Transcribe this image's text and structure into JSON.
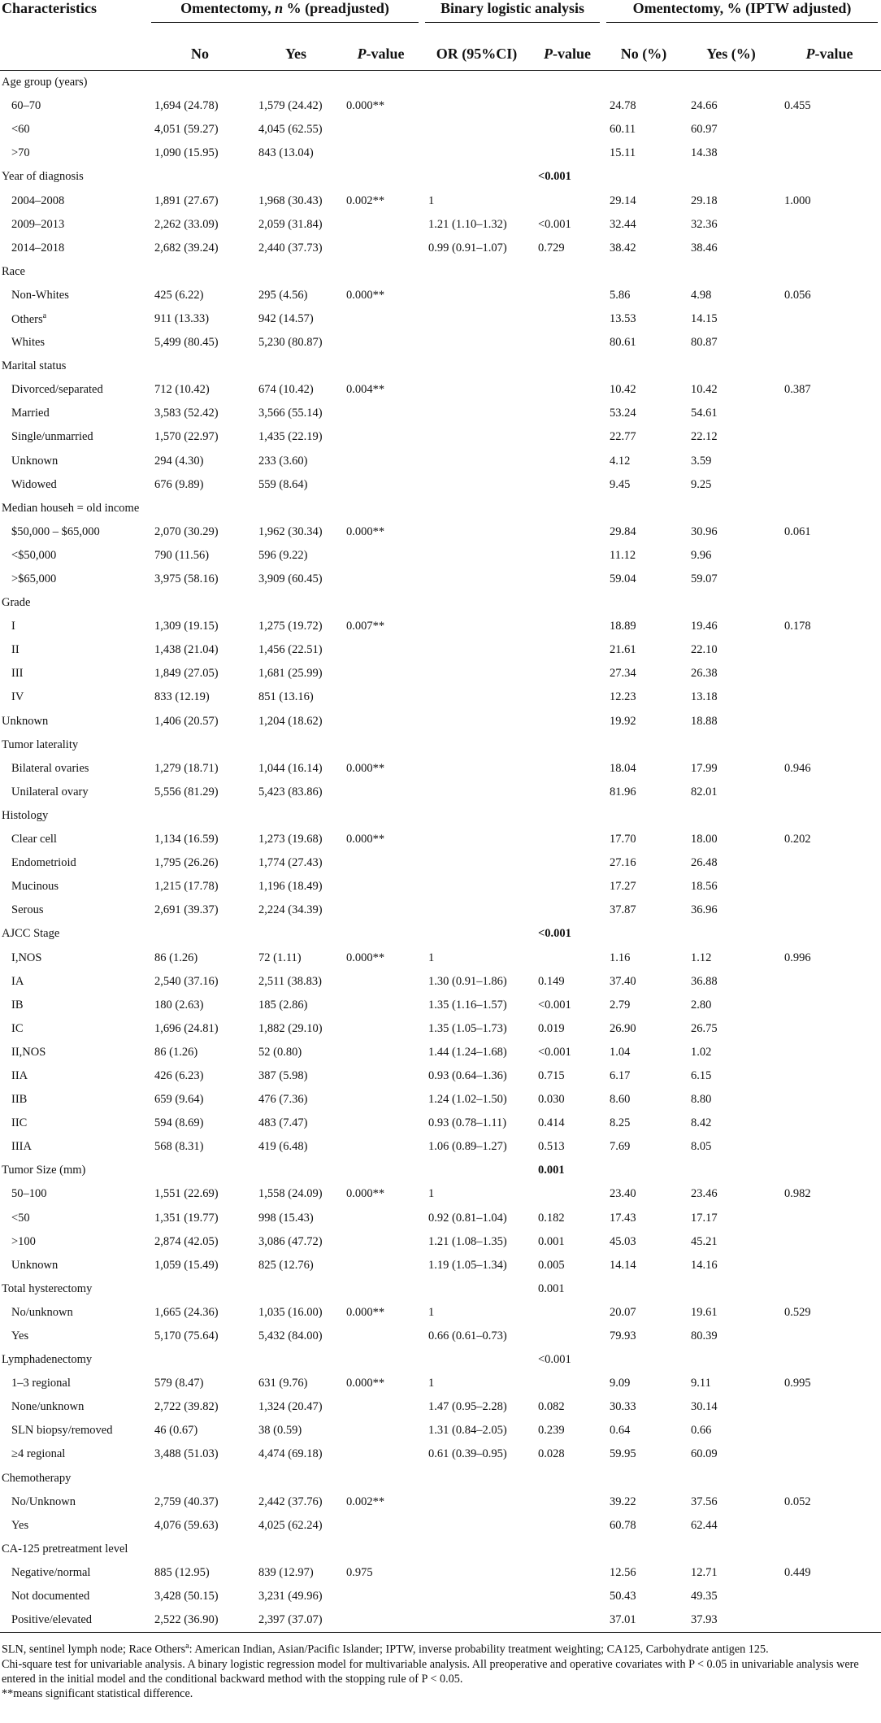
{
  "table": {
    "header_groups": {
      "characteristics": "Characteristics",
      "omentectomy": {
        "before": "Omentectomy, ",
        "italic": "n",
        "after": " % (preadjusted)"
      },
      "binary": "Binary logistic analysis",
      "iptw": "Omentectomy, % (IPTW adjusted)"
    },
    "columns": [
      "No",
      "Yes",
      "P-value",
      "OR (95%CI)",
      "P-value",
      "No (%)",
      "Yes (%)",
      "P-value"
    ],
    "rows": [
      {
        "label": "Age group (years)",
        "level": 0
      },
      {
        "label": "60–70",
        "level": 1,
        "cells": [
          "1,694 (24.78)",
          "1,579 (24.42)",
          "0.000**",
          null,
          null,
          "24.78",
          "24.66",
          "0.455"
        ]
      },
      {
        "label": "<60",
        "level": 1,
        "cells": [
          "4,051 (59.27)",
          "4,045 (62.55)",
          null,
          null,
          null,
          "60.11",
          "60.97",
          null
        ]
      },
      {
        "label": ">70",
        "level": 1,
        "cells": [
          "1,090 (15.95)",
          "843 (13.04)",
          null,
          null,
          null,
          "15.11",
          "14.38",
          null
        ]
      },
      {
        "label": "Year of diagnosis",
        "level": 0,
        "bold_p": true,
        "cells": [
          null,
          null,
          null,
          null,
          "<0.001",
          null,
          null,
          null
        ]
      },
      {
        "label": "2004–2008",
        "level": 1,
        "cells": [
          "1,891 (27.67)",
          "1,968 (30.43)",
          "0.002**",
          "1",
          null,
          "29.14",
          "29.18",
          "1.000"
        ]
      },
      {
        "label": "2009–2013",
        "level": 1,
        "cells": [
          "2,262 (33.09)",
          "2,059 (31.84)",
          null,
          "1.21 (1.10–1.32)",
          "<0.001",
          "32.44",
          "32.36",
          null
        ]
      },
      {
        "label": "2014–2018",
        "level": 1,
        "cells": [
          "2,682 (39.24)",
          "2,440 (37.73)",
          null,
          "0.99 (0.91–1.07)",
          "0.729",
          "38.42",
          "38.46",
          null
        ]
      },
      {
        "label": "Race",
        "level": 0
      },
      {
        "label": "Non-Whites",
        "level": 1,
        "cells": [
          "425 (6.22)",
          "295 (4.56)",
          "0.000**",
          null,
          null,
          "5.86",
          "4.98",
          "0.056"
        ]
      },
      {
        "label": "Others",
        "sup": "a",
        "level": 1,
        "cells": [
          "911 (13.33)",
          "942 (14.57)",
          null,
          null,
          null,
          "13.53",
          "14.15",
          null
        ]
      },
      {
        "label": "Whites",
        "level": 1,
        "cells": [
          "5,499 (80.45)",
          "5,230 (80.87)",
          null,
          null,
          null,
          "80.61",
          "80.87",
          null
        ]
      },
      {
        "label": "Marital status",
        "level": 0
      },
      {
        "label": "Divorced/separated",
        "level": 1,
        "cells": [
          "712 (10.42)",
          "674 (10.42)",
          "0.004**",
          null,
          null,
          "10.42",
          "10.42",
          "0.387"
        ]
      },
      {
        "label": "Married",
        "level": 1,
        "cells": [
          "3,583 (52.42)",
          "3,566 (55.14)",
          null,
          null,
          null,
          "53.24",
          "54.61",
          null
        ]
      },
      {
        "label": "Single/unmarried",
        "level": 1,
        "cells": [
          "1,570 (22.97)",
          "1,435 (22.19)",
          null,
          null,
          null,
          "22.77",
          "22.12",
          null
        ]
      },
      {
        "label": "Unknown",
        "level": 1,
        "cells": [
          "294 (4.30)",
          "233 (3.60)",
          null,
          null,
          null,
          "4.12",
          "3.59",
          null
        ]
      },
      {
        "label": "Widowed",
        "level": 1,
        "cells": [
          "676 (9.89)",
          "559 (8.64)",
          null,
          null,
          null,
          "9.45",
          "9.25",
          null
        ]
      },
      {
        "label": "Median househ = old income",
        "level": 0
      },
      {
        "label": "$50,000 – $65,000",
        "level": 1,
        "cells": [
          "2,070 (30.29)",
          "1,962 (30.34)",
          "0.000**",
          null,
          null,
          "29.84",
          "30.96",
          "0.061"
        ]
      },
      {
        "label": "<$50,000",
        "level": 1,
        "cells": [
          "790 (11.56)",
          "596 (9.22)",
          null,
          null,
          null,
          "11.12",
          "9.96",
          null
        ]
      },
      {
        "label": ">$65,000",
        "level": 1,
        "cells": [
          "3,975 (58.16)",
          "3,909 (60.45)",
          null,
          null,
          null,
          "59.04",
          "59.07",
          null
        ]
      },
      {
        "label": "Grade",
        "level": 0
      },
      {
        "label": "I",
        "level": 1,
        "cells": [
          "1,309 (19.15)",
          "1,275 (19.72)",
          "0.007**",
          null,
          null,
          "18.89",
          "19.46",
          "0.178"
        ]
      },
      {
        "label": "II",
        "level": 1,
        "cells": [
          "1,438 (21.04)",
          "1,456 (22.51)",
          null,
          null,
          null,
          "21.61",
          "22.10",
          null
        ]
      },
      {
        "label": "III",
        "level": 1,
        "cells": [
          "1,849 (27.05)",
          "1,681 (25.99)",
          null,
          null,
          null,
          "27.34",
          "26.38",
          null
        ]
      },
      {
        "label": "IV",
        "level": 1,
        "cells": [
          "833 (12.19)",
          "851 (13.16)",
          null,
          null,
          null,
          "12.23",
          "13.18",
          null
        ]
      },
      {
        "label": "Unknown",
        "level": 0,
        "cells": [
          "1,406 (20.57)",
          "1,204 (18.62)",
          null,
          null,
          null,
          "19.92",
          "18.88",
          null
        ]
      },
      {
        "label": "Tumor laterality",
        "level": 0
      },
      {
        "label": "Bilateral ovaries",
        "level": 1,
        "cells": [
          "1,279 (18.71)",
          "1,044 (16.14)",
          "0.000**",
          null,
          null,
          "18.04",
          "17.99",
          "0.946"
        ]
      },
      {
        "label": "Unilateral ovary",
        "level": 1,
        "cells": [
          "5,556 (81.29)",
          "5,423 (83.86)",
          null,
          null,
          null,
          "81.96",
          "82.01",
          null
        ]
      },
      {
        "label": "Histology",
        "level": 0
      },
      {
        "label": "Clear cell",
        "level": 1,
        "cells": [
          "1,134 (16.59)",
          "1,273 (19.68)",
          "0.000**",
          null,
          null,
          "17.70",
          "18.00",
          "0.202"
        ]
      },
      {
        "label": "Endometrioid",
        "level": 1,
        "cells": [
          "1,795 (26.26)",
          "1,774 (27.43)",
          null,
          null,
          null,
          "27.16",
          "26.48",
          null
        ]
      },
      {
        "label": "Mucinous",
        "level": 1,
        "cells": [
          "1,215 (17.78)",
          "1,196 (18.49)",
          null,
          null,
          null,
          "17.27",
          "18.56",
          null
        ]
      },
      {
        "label": "Serous",
        "level": 1,
        "cells": [
          "2,691 (39.37)",
          "2,224 (34.39)",
          null,
          null,
          null,
          "37.87",
          "36.96",
          null
        ]
      },
      {
        "label": "AJCC Stage",
        "level": 0,
        "bold_p": true,
        "cells": [
          null,
          null,
          null,
          null,
          "<0.001",
          null,
          null,
          null
        ]
      },
      {
        "label": "I,NOS",
        "level": 1,
        "cells": [
          "86 (1.26)",
          "72 (1.11)",
          "0.000**",
          "1",
          null,
          "1.16",
          "1.12",
          "0.996"
        ]
      },
      {
        "label": "IA",
        "level": 1,
        "cells": [
          "2,540 (37.16)",
          "2,511 (38.83)",
          null,
          "1.30 (0.91–1.86)",
          "0.149",
          "37.40",
          "36.88",
          null
        ]
      },
      {
        "label": "IB",
        "level": 1,
        "cells": [
          "180 (2.63)",
          "185 (2.86)",
          null,
          "1.35 (1.16–1.57)",
          "<0.001",
          "2.79",
          "2.80",
          null
        ]
      },
      {
        "label": "IC",
        "level": 1,
        "cells": [
          "1,696 (24.81)",
          "1,882 (29.10)",
          null,
          "1.35 (1.05–1.73)",
          "0.019",
          "26.90",
          "26.75",
          null
        ]
      },
      {
        "label": "II,NOS",
        "level": 1,
        "cells": [
          "86 (1.26)",
          "52 (0.80)",
          null,
          "1.44 (1.24–1.68)",
          "<0.001",
          "1.04",
          "1.02",
          null
        ]
      },
      {
        "label": "IIA",
        "level": 1,
        "cells": [
          "426 (6.23)",
          "387 (5.98)",
          null,
          "0.93 (0.64–1.36)",
          "0.715",
          "6.17",
          "6.15",
          null
        ]
      },
      {
        "label": "IIB",
        "level": 1,
        "cells": [
          "659 (9.64)",
          "476 (7.36)",
          null,
          "1.24 (1.02–1.50)",
          "0.030",
          "8.60",
          "8.80",
          null
        ]
      },
      {
        "label": "IIC",
        "level": 1,
        "cells": [
          "594 (8.69)",
          "483 (7.47)",
          null,
          "0.93 (0.78–1.11)",
          "0.414",
          "8.25",
          "8.42",
          null
        ]
      },
      {
        "label": "IIIA",
        "level": 1,
        "cells": [
          "568 (8.31)",
          "419 (6.48)",
          null,
          "1.06 (0.89–1.27)",
          "0.513",
          "7.69",
          "8.05",
          null
        ]
      },
      {
        "label": "Tumor Size (mm)",
        "level": 0,
        "bold_p": true,
        "cells": [
          null,
          null,
          null,
          null,
          "0.001",
          null,
          null,
          null
        ]
      },
      {
        "label": "50–100",
        "level": 1,
        "cells": [
          "1,551 (22.69)",
          "1,558 (24.09)",
          "0.000**",
          "1",
          null,
          "23.40",
          "23.46",
          "0.982"
        ]
      },
      {
        "label": "<50",
        "level": 1,
        "cells": [
          "1,351 (19.77)",
          "998 (15.43)",
          null,
          "0.92 (0.81–1.04)",
          "0.182",
          "17.43",
          "17.17",
          null
        ]
      },
      {
        "label": ">100",
        "level": 1,
        "cells": [
          "2,874 (42.05)",
          "3,086 (47.72)",
          null,
          "1.21 (1.08–1.35)",
          "0.001",
          "45.03",
          "45.21",
          null
        ]
      },
      {
        "label": "Unknown",
        "level": 1,
        "cells": [
          "1,059 (15.49)",
          "825 (12.76)",
          null,
          "1.19 (1.05–1.34)",
          "0.005",
          "14.14",
          "14.16",
          null
        ]
      },
      {
        "label": "Total hysterectomy",
        "level": 0,
        "cells": [
          null,
          null,
          null,
          null,
          "0.001",
          null,
          null,
          null
        ]
      },
      {
        "label": "No/unknown",
        "level": 1,
        "cells": [
          "1,665 (24.36)",
          "1,035 (16.00)",
          "0.000**",
          "1",
          null,
          "20.07",
          "19.61",
          "0.529"
        ]
      },
      {
        "label": "Yes",
        "level": 1,
        "cells": [
          "5,170 (75.64)",
          "5,432 (84.00)",
          null,
          "0.66 (0.61–0.73)",
          null,
          "79.93",
          "80.39",
          null
        ]
      },
      {
        "label": "Lymphadenectomy",
        "level": 0,
        "cells": [
          null,
          null,
          null,
          null,
          "<0.001",
          null,
          null,
          null
        ]
      },
      {
        "label": "1–3 regional",
        "level": 1,
        "cells": [
          "579 (8.47)",
          "631 (9.76)",
          "0.000**",
          "1",
          null,
          "9.09",
          "9.11",
          "0.995"
        ]
      },
      {
        "label": "None/unknown",
        "level": 1,
        "cells": [
          "2,722 (39.82)",
          "1,324 (20.47)",
          null,
          "1.47 (0.95–2.28)",
          "0.082",
          "30.33",
          "30.14",
          null
        ]
      },
      {
        "label": "SLN biopsy/removed",
        "level": 1,
        "cells": [
          "46 (0.67)",
          "38 (0.59)",
          null,
          "1.31 (0.84–2.05)",
          "0.239",
          "0.64",
          "0.66",
          null
        ]
      },
      {
        "label": "≥4 regional",
        "level": 1,
        "cells": [
          "3,488 (51.03)",
          "4,474 (69.18)",
          null,
          "0.61 (0.39–0.95)",
          "0.028",
          "59.95",
          "60.09",
          null
        ]
      },
      {
        "label": "Chemotherapy",
        "level": 0
      },
      {
        "label": "No/Unknown",
        "level": 1,
        "cells": [
          "2,759 (40.37)",
          "2,442 (37.76)",
          "0.002**",
          null,
          null,
          "39.22",
          "37.56",
          "0.052"
        ]
      },
      {
        "label": "Yes",
        "level": 1,
        "cells": [
          "4,076 (59.63)",
          "4,025 (62.24)",
          null,
          null,
          null,
          "60.78",
          "62.44",
          null
        ]
      },
      {
        "label": "CA-125 pretreatment level",
        "level": 0
      },
      {
        "label": "Negative/normal",
        "level": 1,
        "cells": [
          "885 (12.95)",
          "839 (12.97)",
          "0.975",
          null,
          null,
          "12.56",
          "12.71",
          "0.449"
        ]
      },
      {
        "label": "Not documented",
        "level": 1,
        "cells": [
          "3,428 (50.15)",
          "3,231 (49.96)",
          null,
          null,
          null,
          "50.43",
          "49.35",
          null
        ]
      },
      {
        "label": "Positive/elevated",
        "level": 1,
        "cells": [
          "2,522 (36.90)",
          "2,397 (37.07)",
          null,
          null,
          null,
          "37.01",
          "37.93",
          null
        ]
      }
    ],
    "footnotes": {
      "first": {
        "before": "SLN, sentinel lymph node; Race Others",
        "sup": "a",
        "after": ": American Indian, Asian/Pacific Islander; IPTW, inverse probability treatment weighting; CA125, Carbohydrate antigen 125."
      },
      "second": "Chi-square test for univariable analysis. A binary logistic regression model for multivariable analysis. All preoperative and operative covariates with P < 0.05 in univariable analysis were entered in the initial model and the conditional backward method with the stopping rule of P < 0.05.",
      "third": "**means significant statistical difference."
    }
  }
}
